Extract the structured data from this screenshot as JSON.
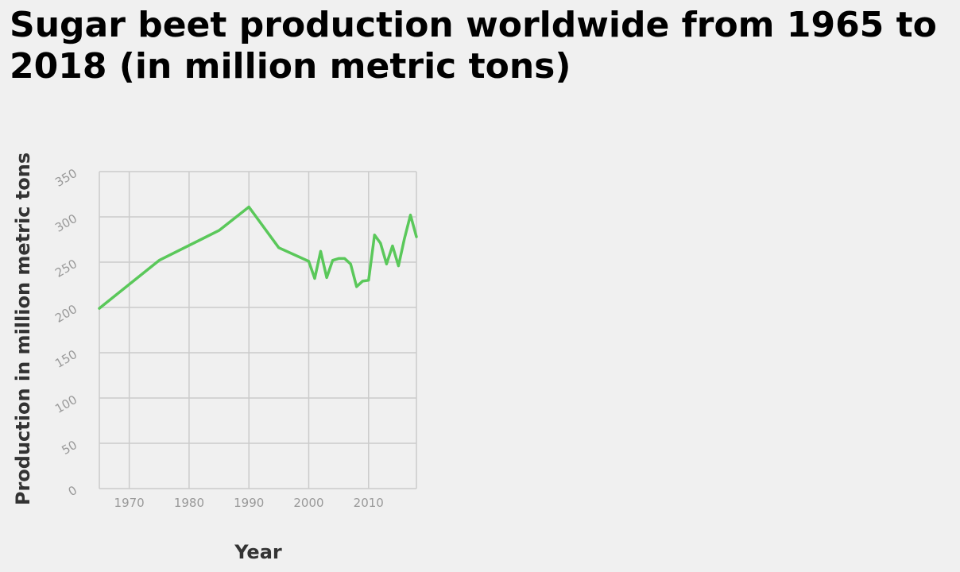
{
  "chart_data": {
    "type": "line",
    "title": "Sugar beet production worldwide from 1965 to 2018 (in million metric tons)",
    "xlabel": "Year",
    "ylabel": "Production in million metric tons",
    "xlim": [
      1965,
      2018
    ],
    "ylim": [
      0,
      350
    ],
    "x_ticks": [
      1970,
      1980,
      1990,
      2000,
      2010
    ],
    "y_ticks": [
      0,
      50,
      100,
      150,
      200,
      250,
      300,
      350
    ],
    "grid": true,
    "line_color": "#5ac85a",
    "background_color": "#f0f0f0",
    "grid_color": "#cbcbcb",
    "x": [
      1965,
      1975,
      1985,
      1990,
      1995,
      2000,
      2001,
      2002,
      2003,
      2004,
      2005,
      2006,
      2007,
      2008,
      2009,
      2010,
      2011,
      2012,
      2013,
      2014,
      2015,
      2016,
      2017,
      2018
    ],
    "y": [
      199,
      252,
      285,
      311,
      266,
      251,
      232,
      262,
      233,
      252,
      254,
      254,
      248,
      223,
      229,
      230,
      280,
      271,
      248,
      268,
      246,
      276,
      302,
      278
    ]
  }
}
